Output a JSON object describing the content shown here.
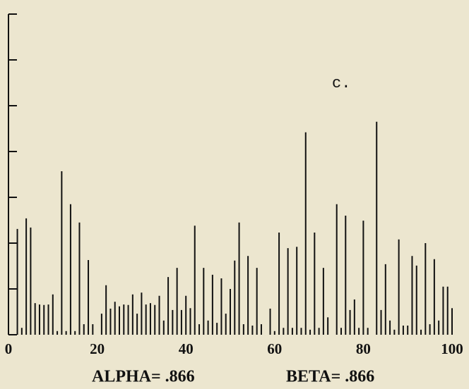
{
  "chart_data": {
    "type": "stem",
    "color": "#111111",
    "annotation": "c.",
    "captions": [
      "ALPHA= .866",
      "BETA= .866"
    ],
    "x": [
      2,
      3,
      4,
      5,
      6,
      7,
      8,
      9,
      10,
      11,
      12,
      13,
      14,
      15,
      16,
      17,
      18,
      19,
      20,
      21,
      22,
      23,
      24,
      25,
      26,
      27,
      28,
      29,
      30,
      31,
      32,
      33,
      34,
      35,
      36,
      37,
      38,
      39,
      40,
      41,
      42,
      43,
      44,
      45,
      46,
      47,
      48,
      49,
      50,
      51,
      52,
      53,
      54,
      55,
      56,
      57,
      58,
      59,
      60,
      61,
      62,
      63,
      64,
      65,
      66,
      67,
      68,
      69,
      70,
      71,
      72,
      73,
      74,
      75,
      76,
      77,
      78,
      79,
      80,
      81,
      82,
      83,
      84,
      85,
      86,
      87,
      88,
      89,
      90,
      91,
      92,
      93,
      94,
      95,
      96,
      97,
      98,
      99,
      100
    ],
    "values": [
      2.31,
      0.15,
      2.54,
      2.34,
      0.69,
      0.66,
      0.65,
      0.66,
      0.88,
      0.08,
      3.57,
      0.08,
      2.85,
      0.08,
      2.45,
      0.23,
      1.63,
      0.23,
      0,
      0.46,
      1.08,
      0.57,
      0.72,
      0.62,
      0.66,
      0.65,
      0.88,
      0.46,
      0.92,
      0.66,
      0.69,
      0.65,
      0.85,
      0.31,
      1.26,
      0.54,
      1.46,
      0.54,
      0.85,
      0.58,
      2.38,
      0.23,
      1.46,
      0.31,
      1.31,
      0.26,
      1.23,
      0.46,
      1.0,
      1.62,
      2.45,
      0.23,
      1.72,
      0.2,
      1.46,
      0.23,
      0,
      0.57,
      0.08,
      2.23,
      0.15,
      1.89,
      0.15,
      1.92,
      0.15,
      4.42,
      0.11,
      2.23,
      0.15,
      1.46,
      0.38,
      0,
      2.85,
      0.15,
      2.6,
      0.54,
      0.77,
      0.15,
      2.49,
      0.15,
      0,
      4.65,
      0.54,
      1.54,
      0.31,
      0.11,
      2.08,
      0.2,
      0.2,
      1.72,
      1.51,
      0.11,
      2.0,
      0.23,
      1.65,
      0.31,
      1.05,
      1.05,
      0.58
    ],
    "xlim": [
      0,
      100
    ],
    "xticks": [
      0,
      20,
      40,
      60,
      80,
      100
    ],
    "ylim": [
      0,
      7
    ],
    "yticks": [
      0,
      1,
      2,
      3,
      4,
      5,
      6,
      7
    ]
  }
}
